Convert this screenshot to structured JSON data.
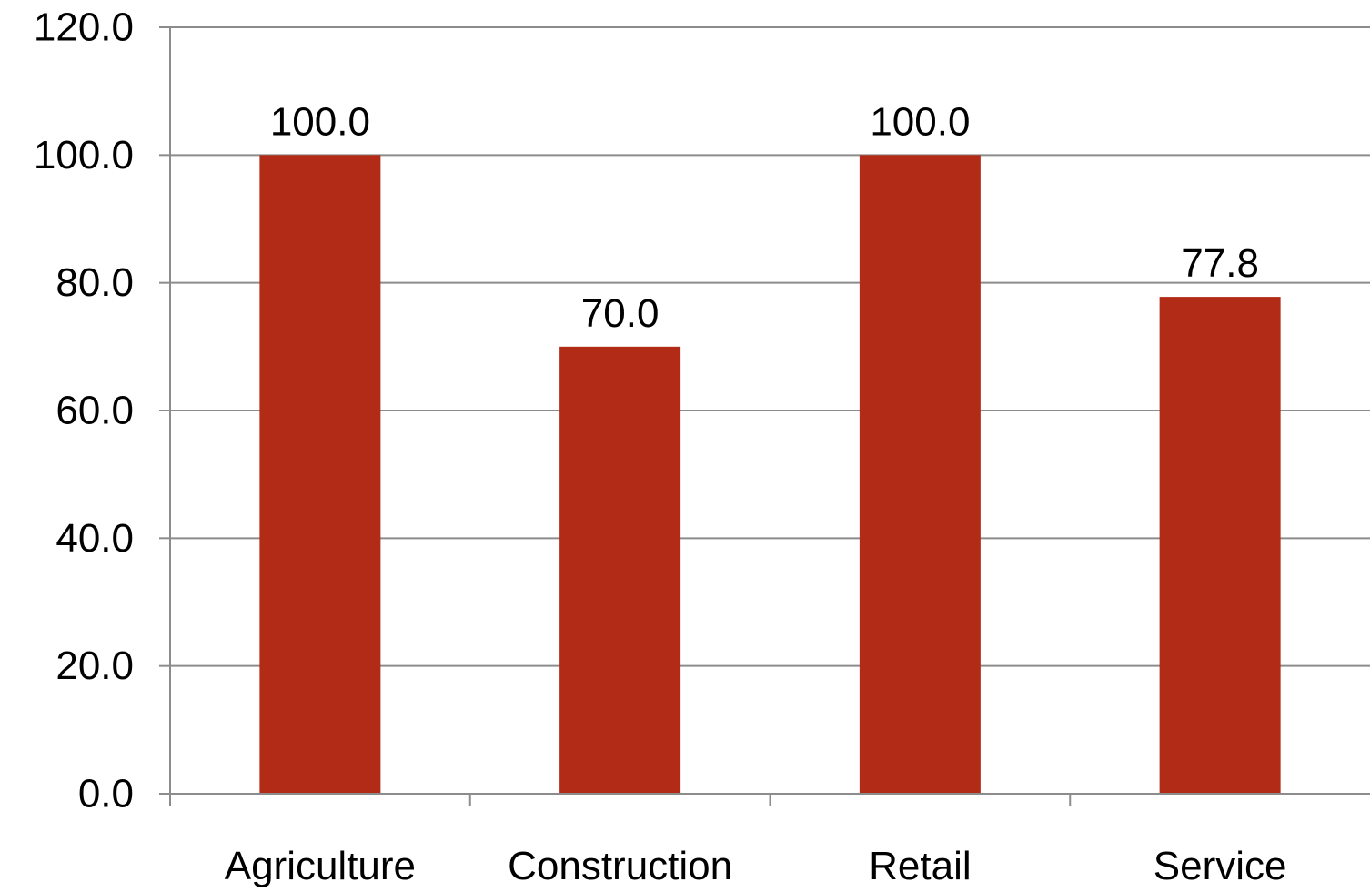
{
  "chart_data": {
    "type": "bar",
    "categories": [
      "Agriculture",
      "Construction",
      "Retail",
      "Service"
    ],
    "values": [
      100.0,
      70.0,
      100.0,
      77.8
    ],
    "data_labels": [
      "100.0",
      "70.0",
      "100.0",
      "77.8"
    ],
    "y_ticks": [
      "0.0",
      "20.0",
      "40.0",
      "60.0",
      "80.0",
      "100.0",
      "120.0"
    ],
    "ylim": [
      0,
      120
    ],
    "y_step": 20,
    "grid": true,
    "legend": "none",
    "title": "",
    "xlabel": "",
    "ylabel": "",
    "bar_color": "#b22b17"
  }
}
